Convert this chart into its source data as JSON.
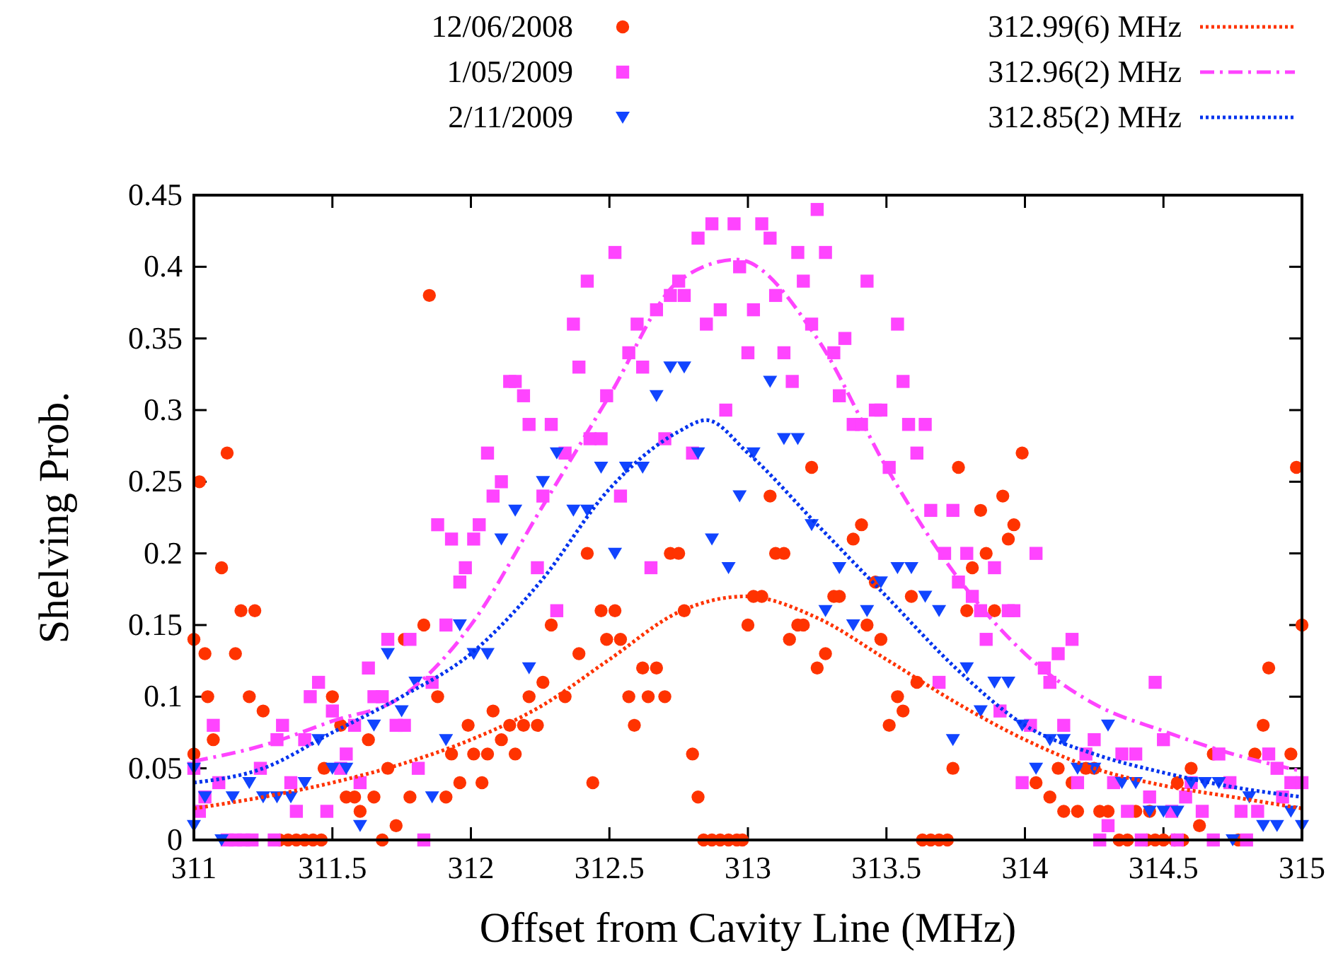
{
  "chart_data": {
    "type": "scatter",
    "xlabel": "Offset from Cavity Line (MHz)",
    "ylabel": "Shelving Prob.",
    "xlim": [
      311,
      315
    ],
    "ylim": [
      0,
      0.45
    ],
    "xticks": [
      311,
      311.5,
      312,
      312.5,
      313,
      313.5,
      314,
      314.5,
      315
    ],
    "yticks": [
      0,
      0.05,
      0.1,
      0.15,
      0.2,
      0.25,
      0.3,
      0.35,
      0.4,
      0.45
    ],
    "grid": false,
    "legend": "top",
    "series": [
      {
        "name": "12/06/2008",
        "color": "#ff3300",
        "marker": "circle",
        "x": [
          311,
          311,
          311.02,
          311.04,
          311.05,
          311.07,
          311.1,
          311.12,
          311.15,
          311.17,
          311.2,
          311.22,
          311.25,
          311.31,
          311.34,
          311.37,
          311.4,
          311.43,
          311.46,
          311.47,
          311.5,
          311.53,
          311.55,
          311.58,
          311.6,
          311.63,
          311.65,
          311.68,
          311.7,
          311.73,
          311.76,
          311.78,
          311.83,
          311.85,
          311.88,
          311.91,
          311.93,
          311.96,
          311.99,
          312.01,
          312.04,
          312.06,
          312.08,
          312.11,
          312.14,
          312.16,
          312.19,
          312.21,
          312.24,
          312.26,
          312.29,
          312.34,
          312.39,
          312.42,
          312.44,
          312.47,
          312.49,
          312.52,
          312.54,
          312.57,
          312.59,
          312.62,
          312.64,
          312.67,
          312.7,
          312.72,
          312.75,
          312.77,
          312.8,
          312.82,
          312.84,
          312.87,
          312.9,
          312.93,
          312.96,
          312.98,
          313,
          313.02,
          313.05,
          313.08,
          313.1,
          313.13,
          313.15,
          313.18,
          313.2,
          313.23,
          313.25,
          313.28,
          313.31,
          313.33,
          313.38,
          313.41,
          313.43,
          313.46,
          313.48,
          313.51,
          313.54,
          313.56,
          313.59,
          313.61,
          313.63,
          313.66,
          313.69,
          313.72,
          313.74,
          313.76,
          313.79,
          313.81,
          313.84,
          313.86,
          313.89,
          313.92,
          313.94,
          313.96,
          313.99,
          314.04,
          314.09,
          314.12,
          314.14,
          314.17,
          314.19,
          314.22,
          314.25,
          314.27,
          314.3,
          314.34,
          314.37,
          314.4,
          314.44,
          314.45,
          314.47,
          314.5,
          314.54,
          314.55,
          314.57,
          314.6,
          314.63,
          314.68,
          314.77,
          314.83,
          314.86,
          314.88,
          314.96,
          314.98,
          315
        ],
        "values": [
          0.06,
          0.14,
          0.25,
          0.13,
          0.1,
          0.07,
          0.19,
          0.27,
          0.13,
          0.16,
          0.1,
          0.16,
          0.09,
          0,
          0,
          0,
          0,
          0,
          0,
          0.05,
          0.1,
          0.08,
          0.03,
          0.03,
          0.02,
          0.07,
          0.03,
          0,
          0.05,
          0.01,
          0.14,
          0.03,
          0.15,
          0.38,
          0.1,
          0.03,
          0.06,
          0.04,
          0.08,
          0.06,
          0.04,
          0.06,
          0.09,
          0.07,
          0.08,
          0.06,
          0.08,
          0.1,
          0.08,
          0.11,
          0.15,
          0.1,
          0.13,
          0.2,
          0.04,
          0.16,
          0.14,
          0.16,
          0.14,
          0.1,
          0.08,
          0.12,
          0.1,
          0.12,
          0.1,
          0.2,
          0.2,
          0.16,
          0.06,
          0.03,
          0,
          0,
          0,
          0,
          0,
          0,
          0.15,
          0.17,
          0.17,
          0.24,
          0.2,
          0.2,
          0.14,
          0.15,
          0.15,
          0.26,
          0.12,
          0.13,
          0.17,
          0.17,
          0.21,
          0.22,
          0.15,
          0.18,
          0.14,
          0.08,
          0.1,
          0.09,
          0.17,
          0.11,
          0,
          0,
          0,
          0,
          0.05,
          0.26,
          0.16,
          0.19,
          0.23,
          0.2,
          0.16,
          0.24,
          0.21,
          0.22,
          0.27,
          0.04,
          0.03,
          0.05,
          0.02,
          0.04,
          0.02,
          0.05,
          0.05,
          0.02,
          0.02,
          0,
          0,
          0.02,
          0,
          0.02,
          0,
          0,
          0,
          0.04,
          0,
          0.05,
          0.01,
          0.06,
          0,
          0.06,
          0.08,
          0.12,
          0.06,
          0.26,
          0.15
        ]
      },
      {
        "name": "1/05/2009",
        "color": "#ff44ff",
        "marker": "square",
        "x": [
          311,
          311.02,
          311.04,
          311.07,
          311.09,
          311.12,
          311.15,
          311.18,
          311.21,
          311.24,
          311.29,
          311.3,
          311.32,
          311.35,
          311.37,
          311.4,
          311.42,
          311.45,
          311.48,
          311.5,
          311.53,
          311.55,
          311.58,
          311.6,
          311.63,
          311.65,
          311.68,
          311.7,
          311.73,
          311.76,
          311.78,
          311.81,
          311.83,
          311.86,
          311.88,
          311.91,
          311.93,
          311.96,
          311.98,
          312.01,
          312.03,
          312.06,
          312.08,
          312.11,
          312.14,
          312.16,
          312.19,
          312.21,
          312.24,
          312.26,
          312.29,
          312.31,
          312.34,
          312.37,
          312.39,
          312.42,
          312.43,
          312.47,
          312.49,
          312.52,
          312.54,
          312.57,
          312.6,
          312.62,
          312.65,
          312.67,
          312.7,
          312.72,
          312.75,
          312.77,
          312.8,
          312.82,
          312.85,
          312.87,
          312.9,
          312.92,
          312.95,
          312.97,
          313,
          313.02,
          313.05,
          313.08,
          313.1,
          313.13,
          313.16,
          313.18,
          313.2,
          313.23,
          313.25,
          313.28,
          313.31,
          313.33,
          313.35,
          313.38,
          313.41,
          313.43,
          313.46,
          313.48,
          313.51,
          313.54,
          313.56,
          313.58,
          313.61,
          313.64,
          313.66,
          313.69,
          313.71,
          313.74,
          313.76,
          313.79,
          313.81,
          313.84,
          313.86,
          313.89,
          313.91,
          313.94,
          313.96,
          313.99,
          314.02,
          314.04,
          314.07,
          314.09,
          314.12,
          314.14,
          314.17,
          314.19,
          314.22,
          314.25,
          314.27,
          314.3,
          314.32,
          314.35,
          314.37,
          314.4,
          314.42,
          314.45,
          314.47,
          314.5,
          314.53,
          314.55,
          314.58,
          314.6,
          314.64,
          314.68,
          314.7,
          314.74,
          314.78,
          314.8,
          314.84,
          314.88,
          314.91,
          314.93,
          314.96,
          315
        ],
        "values": [
          0.05,
          0.02,
          0.03,
          0.08,
          0.04,
          0,
          0,
          0,
          0,
          0.05,
          0,
          0.07,
          0.08,
          0.04,
          0.02,
          0.07,
          0.1,
          0.11,
          0.02,
          0.09,
          0.05,
          0.06,
          0.08,
          0.04,
          0.12,
          0.1,
          0.1,
          0.14,
          0.08,
          0.08,
          0.14,
          0.05,
          0,
          0.11,
          0.22,
          0.15,
          0.21,
          0.18,
          0.19,
          0.21,
          0.22,
          0.27,
          0.24,
          0.25,
          0.32,
          0.32,
          0.31,
          0.29,
          0.19,
          0.24,
          0.29,
          0.16,
          0.27,
          0.36,
          0.33,
          0.39,
          0.28,
          0.28,
          0.31,
          0.41,
          0.24,
          0.34,
          0.36,
          0.33,
          0.19,
          0.37,
          0.28,
          0.38,
          0.39,
          0.38,
          0.27,
          0.42,
          0.36,
          0.43,
          0.37,
          0.3,
          0.43,
          0.4,
          0.34,
          0.37,
          0.43,
          0.42,
          0.38,
          0.34,
          0.32,
          0.41,
          0.39,
          0.36,
          0.44,
          0.41,
          0.34,
          0.31,
          0.35,
          0.29,
          0.29,
          0.39,
          0.3,
          0.3,
          0.26,
          0.36,
          0.32,
          0.29,
          0.27,
          0.29,
          0.23,
          0.11,
          0.2,
          0.23,
          0.18,
          0.2,
          0.17,
          0.16,
          0.14,
          0.19,
          0.09,
          0.16,
          0.16,
          0.04,
          0.08,
          0.2,
          0.12,
          0.11,
          0.13,
          0.08,
          0.14,
          0.04,
          0.06,
          0.07,
          0,
          0.01,
          0.04,
          0.06,
          0.02,
          0.06,
          0,
          0.03,
          0.11,
          0.07,
          0.02,
          0,
          0.03,
          0.04,
          0.02,
          0,
          0.06,
          0.04,
          0.02,
          0,
          0.02,
          0.06,
          0.05,
          0.03,
          0.04,
          0.04
        ]
      },
      {
        "name": "2/11/2009",
        "color": "#1144ff",
        "marker": "triangle",
        "x": [
          311,
          311,
          311.04,
          311.1,
          311.14,
          311.2,
          311.25,
          311.3,
          311.35,
          311.4,
          311.45,
          311.5,
          311.55,
          311.6,
          311.65,
          311.7,
          311.75,
          311.8,
          311.86,
          311.91,
          311.96,
          312.01,
          312.06,
          312.11,
          312.16,
          312.21,
          312.26,
          312.31,
          312.37,
          312.42,
          312.47,
          312.52,
          312.56,
          312.62,
          312.67,
          312.72,
          312.77,
          312.82,
          312.87,
          312.93,
          312.97,
          313.02,
          313.08,
          313.13,
          313.18,
          313.23,
          313.28,
          313.33,
          313.38,
          313.43,
          313.48,
          313.54,
          313.59,
          313.64,
          313.69,
          313.74,
          313.79,
          313.84,
          313.89,
          313.94,
          313.99,
          314.04,
          314.09,
          314.14,
          314.19,
          314.25,
          314.3,
          314.35,
          314.4,
          314.45,
          314.5,
          314.55,
          314.6,
          314.65,
          314.7,
          314.75,
          314.81,
          314.86,
          314.91,
          314.96,
          315
        ],
        "values": [
          0.01,
          0.05,
          0.03,
          0,
          0.03,
          0.04,
          0.03,
          0.03,
          0.03,
          0.04,
          0.07,
          0.05,
          0.05,
          0.01,
          0.08,
          0.13,
          0.09,
          0.11,
          0.03,
          0.07,
          0.15,
          0.13,
          0.13,
          0.21,
          0.23,
          0.12,
          0.25,
          0.27,
          0.23,
          0.23,
          0.26,
          0.2,
          0.26,
          0.26,
          0.31,
          0.33,
          0.33,
          0.27,
          0.21,
          0.19,
          0.24,
          0.27,
          0.32,
          0.28,
          0.28,
          0.22,
          0.16,
          0.19,
          0.15,
          0.16,
          0.18,
          0.19,
          0.19,
          0.17,
          0.16,
          0.07,
          0.12,
          0.09,
          0.11,
          0.11,
          0.08,
          0.05,
          0.07,
          0.07,
          0.05,
          0.05,
          0.08,
          0.04,
          0.04,
          0.02,
          0.02,
          0.02,
          0.04,
          0.04,
          0.04,
          0,
          0.03,
          0.01,
          0.01,
          0.02,
          0.01
        ]
      },
      {
        "type": "line",
        "name": "312.99(6) MHz",
        "color": "#ff3300",
        "line_style": "dotted",
        "x": [
          311,
          311.25,
          311.5,
          311.75,
          312,
          312.25,
          312.5,
          312.75,
          312.99,
          313.25,
          313.5,
          313.75,
          314,
          314.25,
          314.5,
          314.75,
          315
        ],
        "values": [
          0.022,
          0.03,
          0.04,
          0.053,
          0.07,
          0.093,
          0.126,
          0.159,
          0.17,
          0.155,
          0.126,
          0.096,
          0.07,
          0.05,
          0.038,
          0.03,
          0.022
        ]
      },
      {
        "type": "line",
        "name": "312.96(2) MHz",
        "color": "#ff44ff",
        "line_style": "dashed",
        "x": [
          311,
          311.25,
          311.5,
          311.75,
          312,
          312.25,
          312.5,
          312.75,
          312.96,
          313.25,
          313.5,
          313.75,
          314,
          314.25,
          314.5,
          314.75,
          315
        ],
        "values": [
          0.055,
          0.066,
          0.083,
          0.1,
          0.15,
          0.23,
          0.31,
          0.39,
          0.405,
          0.35,
          0.26,
          0.185,
          0.13,
          0.095,
          0.076,
          0.06,
          0.048
        ]
      },
      {
        "type": "line",
        "name": "312.85(2) MHz",
        "color": "#0033ee",
        "line_style": "dotted",
        "x": [
          311,
          311.25,
          311.5,
          311.75,
          312,
          312.25,
          312.5,
          312.75,
          312.85,
          313,
          313.25,
          313.5,
          313.75,
          314,
          314.25,
          314.5,
          314.75,
          315
        ],
        "values": [
          0.04,
          0.05,
          0.075,
          0.1,
          0.13,
          0.18,
          0.245,
          0.285,
          0.293,
          0.27,
          0.22,
          0.17,
          0.12,
          0.08,
          0.06,
          0.047,
          0.037,
          0.03
        ]
      }
    ]
  }
}
